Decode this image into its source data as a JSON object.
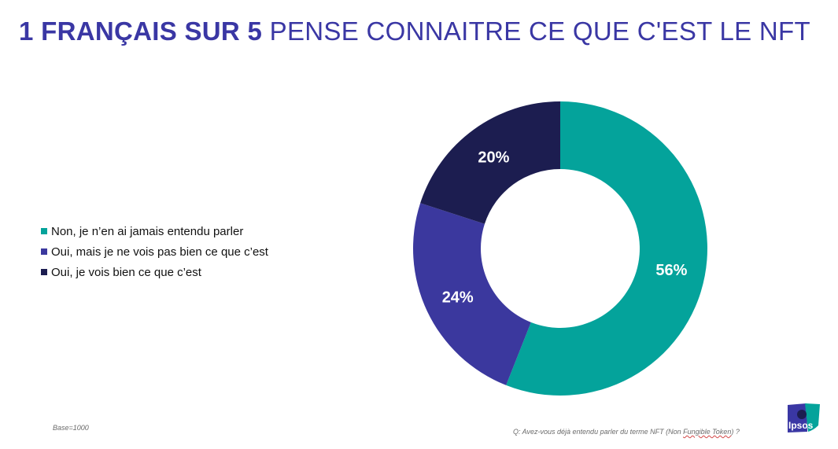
{
  "title": {
    "bold": "1 FRANÇAIS SUR 5",
    "rest": " PENSE CONNAITRE CE QUE C'EST LE NFT"
  },
  "colors": {
    "title": "#3a37a4",
    "teal": "#04a39b",
    "purple": "#3b389e",
    "navy": "#1c1d50"
  },
  "chart_data": {
    "type": "pie",
    "donut": true,
    "legend_position": "left",
    "categories": [
      "Non, je n’en ai jamais entendu parler",
      "Oui, mais je ne vois pas bien ce que c’est",
      "Oui, je vois bien ce que c’est"
    ],
    "values": [
      56,
      24,
      20
    ],
    "labels": [
      "56%",
      "24%",
      "20%"
    ],
    "colors": [
      "#04a39b",
      "#3b389e",
      "#1c1d50"
    ]
  },
  "footer": {
    "base": "Base=1000",
    "question_before": "Q: Avez-vous déjà entendu parler du terme NFT (Non ",
    "question_underlined": "Fungible Token",
    "question_after": ") ?"
  },
  "logo": {
    "name": "ipsos-logo",
    "text": "Ipsos",
    "colors": [
      "#04a39b",
      "#3a37a4"
    ]
  }
}
